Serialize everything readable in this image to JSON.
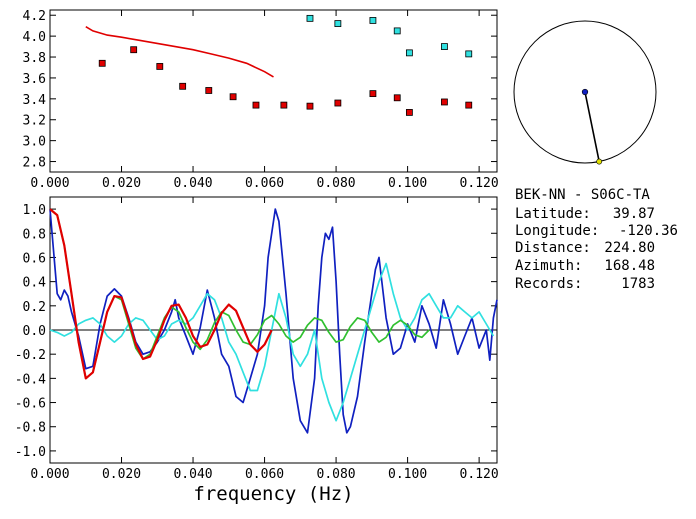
{
  "info": {
    "station_pair": "BEK-NN  -  S06C-TA",
    "rows": [
      {
        "label": "Latitude:",
        "value": "39.87"
      },
      {
        "label": "Longitude:",
        "value": "-120.36"
      },
      {
        "label": "Distance:",
        "value": "224.80"
      },
      {
        "label": "Azimuth:",
        "value": "168.48"
      },
      {
        "label": "Records:",
        "value": "1783"
      }
    ]
  },
  "colors": {
    "red": "#e00000",
    "cyan": "#30e0e0",
    "blue": "#1020c0",
    "green": "#30c030",
    "marker_edge": "#000000"
  },
  "chart_data": [
    {
      "type": "scatter",
      "xlabel": "",
      "ylabel": "",
      "xlim": [
        0.0,
        0.125
      ],
      "ylim": [
        2.7,
        4.25
      ],
      "x_ticks": [
        "0.000",
        "0.020",
        "0.040",
        "0.060",
        "0.080",
        "0.100",
        "0.120"
      ],
      "y_ticks": [
        "2.8",
        "3.0",
        "3.2",
        "3.4",
        "3.6",
        "3.8",
        "4.0",
        "4.2"
      ],
      "grid": false,
      "series": [
        {
          "color": "red",
          "marker": "square",
          "x": [
            0.0146,
            0.0234,
            0.0307,
            0.0371,
            0.0444,
            0.0512,
            0.0576,
            0.0654,
            0.0727,
            0.0805,
            0.0903,
            0.0971,
            0.1005,
            0.1103,
            0.1171
          ],
          "y": [
            3.74,
            3.87,
            3.71,
            3.52,
            3.48,
            3.42,
            3.34,
            3.34,
            3.33,
            3.36,
            3.45,
            3.41,
            3.27,
            3.37,
            3.34
          ]
        },
        {
          "color": "cyan",
          "marker": "square",
          "x": [
            0.0727,
            0.0805,
            0.0903,
            0.0971,
            0.1005,
            0.1103,
            0.1171
          ],
          "y": [
            4.17,
            4.12,
            4.15,
            4.05,
            3.84,
            3.9,
            3.83
          ]
        },
        {
          "color": "red",
          "marker": "line",
          "x": [
            0.01,
            0.012,
            0.014,
            0.016,
            0.02,
            0.025,
            0.03,
            0.035,
            0.04,
            0.045,
            0.05,
            0.055,
            0.06,
            0.0625
          ],
          "y": [
            4.09,
            4.05,
            4.03,
            4.01,
            3.99,
            3.96,
            3.93,
            3.9,
            3.87,
            3.83,
            3.79,
            3.74,
            3.66,
            3.61
          ]
        }
      ]
    },
    {
      "type": "line",
      "xlabel": "frequency (Hz)",
      "ylabel": "",
      "xlim": [
        0.0,
        0.125
      ],
      "ylim": [
        -1.1,
        1.1
      ],
      "x_ticks": [
        "0.000",
        "0.020",
        "0.040",
        "0.060",
        "0.080",
        "0.100",
        "0.120"
      ],
      "y_ticks": [
        "1.0",
        "0.8",
        "0.6",
        "0.4",
        "0.2",
        "0.0",
        "-0.2",
        "-0.4",
        "-0.6",
        "-0.8",
        "-1.0"
      ],
      "grid": false,
      "zero_line": true,
      "series": [
        {
          "color": "blue",
          "x": [
            0.0,
            0.002,
            0.003,
            0.004,
            0.005,
            0.006,
            0.008,
            0.01,
            0.012,
            0.014,
            0.016,
            0.018,
            0.02,
            0.022,
            0.024,
            0.026,
            0.028,
            0.03,
            0.032,
            0.034,
            0.035,
            0.036,
            0.038,
            0.04,
            0.042,
            0.044,
            0.046,
            0.048,
            0.05,
            0.052,
            0.054,
            0.056,
            0.058,
            0.06,
            0.061,
            0.062,
            0.063,
            0.064,
            0.066,
            0.068,
            0.07,
            0.072,
            0.074,
            0.075,
            0.076,
            0.077,
            0.078,
            0.079,
            0.08,
            0.081,
            0.082,
            0.083,
            0.084,
            0.086,
            0.088,
            0.09,
            0.091,
            0.092,
            0.094,
            0.096,
            0.098,
            0.1,
            0.102,
            0.104,
            0.106,
            0.108,
            0.11,
            0.112,
            0.114,
            0.116,
            0.118,
            0.12,
            0.122,
            0.123,
            0.124,
            0.125
          ],
          "y": [
            1.0,
            0.3,
            0.25,
            0.33,
            0.28,
            0.15,
            -0.05,
            -0.32,
            -0.3,
            0.05,
            0.28,
            0.34,
            0.28,
            0.1,
            -0.1,
            -0.2,
            -0.18,
            -0.1,
            0.0,
            0.15,
            0.25,
            0.1,
            -0.05,
            -0.2,
            0.02,
            0.33,
            0.1,
            -0.2,
            -0.3,
            -0.55,
            -0.6,
            -0.4,
            -0.2,
            0.2,
            0.6,
            0.8,
            1.0,
            0.9,
            0.3,
            -0.4,
            -0.75,
            -0.85,
            -0.4,
            0.2,
            0.6,
            0.8,
            0.75,
            0.85,
            0.4,
            -0.2,
            -0.7,
            -0.85,
            -0.8,
            -0.55,
            -0.1,
            0.3,
            0.5,
            0.6,
            0.1,
            -0.2,
            -0.15,
            0.05,
            -0.1,
            0.2,
            0.05,
            -0.15,
            0.25,
            0.05,
            -0.2,
            -0.05,
            0.1,
            -0.15,
            0.0,
            -0.25,
            0.1,
            0.25
          ]
        },
        {
          "color": "cyan",
          "x": [
            0.0,
            0.002,
            0.004,
            0.006,
            0.008,
            0.01,
            0.012,
            0.014,
            0.016,
            0.018,
            0.02,
            0.022,
            0.024,
            0.026,
            0.028,
            0.03,
            0.032,
            0.034,
            0.036,
            0.038,
            0.04,
            0.042,
            0.044,
            0.046,
            0.048,
            0.05,
            0.052,
            0.054,
            0.056,
            0.058,
            0.06,
            0.062,
            0.064,
            0.066,
            0.068,
            0.07,
            0.072,
            0.074,
            0.076,
            0.078,
            0.08,
            0.082,
            0.084,
            0.086,
            0.088,
            0.09,
            0.092,
            0.094,
            0.096,
            0.098,
            0.1,
            0.102,
            0.104,
            0.106,
            0.108,
            0.11,
            0.112,
            0.114,
            0.116,
            0.118,
            0.12,
            0.122,
            0.124
          ],
          "y": [
            0.0,
            -0.02,
            -0.05,
            -0.02,
            0.05,
            0.08,
            0.1,
            0.05,
            -0.05,
            -0.1,
            -0.05,
            0.05,
            0.1,
            0.08,
            0.0,
            -0.08,
            -0.05,
            0.05,
            0.08,
            0.05,
            0.1,
            0.2,
            0.3,
            0.25,
            0.1,
            -0.1,
            -0.2,
            -0.35,
            -0.5,
            -0.5,
            -0.3,
            0.0,
            0.3,
            0.1,
            -0.2,
            -0.3,
            -0.2,
            0.0,
            -0.4,
            -0.6,
            -0.75,
            -0.6,
            -0.4,
            -0.2,
            0.0,
            0.2,
            0.4,
            0.55,
            0.3,
            0.1,
            0.0,
            0.1,
            0.25,
            0.3,
            0.2,
            0.1,
            0.1,
            0.2,
            0.15,
            0.1,
            0.15,
            0.05,
            -0.05
          ]
        },
        {
          "color": "green",
          "x": [
            0.0,
            0.002,
            0.004,
            0.006,
            0.008,
            0.01,
            0.012,
            0.014,
            0.016,
            0.018,
            0.02,
            0.022,
            0.024,
            0.026,
            0.028,
            0.03,
            0.032,
            0.034,
            0.036,
            0.038,
            0.04,
            0.042,
            0.044,
            0.046,
            0.048,
            0.05,
            0.052,
            0.054,
            0.056,
            0.058,
            0.06,
            0.062,
            0.064,
            0.066,
            0.068,
            0.07,
            0.072,
            0.074,
            0.076,
            0.078,
            0.08,
            0.082,
            0.084,
            0.086,
            0.088,
            0.09,
            0.092,
            0.094,
            0.096,
            0.098,
            0.1,
            0.102,
            0.104,
            0.106
          ],
          "y": [
            1.0,
            0.95,
            0.7,
            0.3,
            -0.1,
            -0.4,
            -0.35,
            -0.1,
            0.15,
            0.28,
            0.25,
            0.05,
            -0.15,
            -0.24,
            -0.2,
            -0.05,
            0.1,
            0.19,
            0.15,
            0.02,
            -0.1,
            -0.16,
            -0.08,
            0.06,
            0.15,
            0.12,
            0.0,
            -0.1,
            -0.12,
            -0.04,
            0.08,
            0.12,
            0.05,
            -0.05,
            -0.1,
            -0.06,
            0.04,
            0.1,
            0.08,
            -0.02,
            -0.1,
            -0.08,
            0.03,
            0.1,
            0.08,
            -0.02,
            -0.1,
            -0.06,
            0.04,
            0.08,
            0.04,
            -0.04,
            -0.06,
            0.0
          ]
        },
        {
          "color": "red",
          "x": [
            0.0,
            0.002,
            0.004,
            0.006,
            0.008,
            0.01,
            0.012,
            0.014,
            0.016,
            0.018,
            0.02,
            0.022,
            0.024,
            0.026,
            0.028,
            0.03,
            0.032,
            0.034,
            0.036,
            0.038,
            0.04,
            0.042,
            0.044,
            0.046,
            0.048,
            0.05,
            0.052,
            0.054,
            0.056,
            0.058,
            0.06,
            0.062
          ],
          "y": [
            1.0,
            0.95,
            0.7,
            0.3,
            -0.1,
            -0.4,
            -0.35,
            -0.1,
            0.15,
            0.28,
            0.27,
            0.08,
            -0.12,
            -0.24,
            -0.22,
            -0.08,
            0.08,
            0.2,
            0.21,
            0.1,
            -0.05,
            -0.14,
            -0.12,
            0.0,
            0.14,
            0.21,
            0.16,
            0.02,
            -0.12,
            -0.18,
            -0.12,
            0.0
          ]
        }
      ]
    }
  ],
  "azimuth_plot": {
    "azimuth_deg": 168.48,
    "relative_distance": 1.0
  }
}
